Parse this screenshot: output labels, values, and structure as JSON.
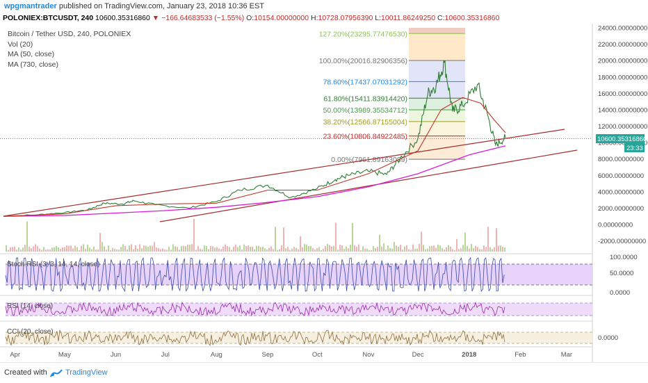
{
  "header": {
    "author": "wpgmantrader",
    "published_text": "published on TradingView.com, January 23, 2018 10:36 EST"
  },
  "quote": {
    "symbol": "POLONIEX:BTCUSDT, 240",
    "last": "10600.35316860",
    "change": "▼ −166.64683533 (−1.55%)",
    "open_label": "O:",
    "open": "10154.00000000",
    "high_label": "H:",
    "high": "10728.07956390",
    "low_label": "L:",
    "low": "10011.86249250",
    "close_label": "C:",
    "close": "10600.35316860"
  },
  "legend": {
    "title": "Bitcoin / Tether USD, 240, POLONIEX",
    "vol": "Vol (20)",
    "ma50": "MA (50, close)",
    "ma730": "MA (730, close)"
  },
  "price_badge": {
    "value": "10600.35316860",
    "timer": "23:33"
  },
  "footer": {
    "created": "Created with",
    "brand": "TradingView"
  },
  "colors": {
    "candle": "#2e7d32",
    "ma50": "#c0392b",
    "ma730": "#d81bd8",
    "channel": "#a52a2a",
    "stoch_fill": "#e1c7f7",
    "rsi_fill": "#efdcfa",
    "badge": "#26a69a"
  },
  "chart_data": [
    {
      "type": "line",
      "title": "Bitcoin / Tether USD, 240, POLONIEX",
      "x_labels": [
        "Apr",
        "May",
        "Jun",
        "Jul",
        "Aug",
        "Sep",
        "Oct",
        "Nov",
        "Dec",
        "2018",
        "Feb",
        "Mar"
      ],
      "y_ticks": [
        "24000.00000000",
        "22000.00000000",
        "20000.00000000",
        "18000.00000000",
        "16000.00000000",
        "14000.00000000",
        "12000.00000000",
        "10000.00000000",
        "8000.00000000",
        "6000.00000000",
        "4000.00000000",
        "2000.00000000",
        "0.00000000",
        "-2000.00000000"
      ],
      "ylim": [
        -3000,
        25000
      ],
      "series": [
        {
          "name": "Bitcoin / Tether USD",
          "x": [
            "2017-03-25",
            "2017-04-15",
            "2017-05-01",
            "2017-05-15",
            "2017-05-25",
            "2017-06-05",
            "2017-06-12",
            "2017-06-25",
            "2017-07-15",
            "2017-08-01",
            "2017-08-15",
            "2017-09-01",
            "2017-09-15",
            "2017-10-01",
            "2017-10-12",
            "2017-10-20",
            "2017-11-01",
            "2017-11-12",
            "2017-11-20",
            "2017-12-01",
            "2017-12-07",
            "2017-12-12",
            "2017-12-17",
            "2017-12-22",
            "2017-12-28",
            "2018-01-06",
            "2018-01-12",
            "2018-01-17",
            "2018-01-23"
          ],
          "values": [
            1000,
            1200,
            1450,
            1800,
            2600,
            2500,
            2900,
            2400,
            2000,
            2800,
            4200,
            4800,
            3300,
            4400,
            5500,
            6000,
            6500,
            6100,
            8000,
            10500,
            16000,
            17000,
            19800,
            13800,
            14500,
            17100,
            13500,
            9700,
            10600
          ]
        },
        {
          "name": "MA (50, close)",
          "x": [
            "2017-03-25",
            "2017-05-01",
            "2017-06-01",
            "2017-07-01",
            "2017-08-01",
            "2017-09-01",
            "2017-10-01",
            "2017-11-01",
            "2017-12-01",
            "2017-12-15",
            "2017-12-28",
            "2018-01-08",
            "2018-01-16",
            "2018-01-23"
          ],
          "values": [
            1000,
            1300,
            2300,
            2500,
            2600,
            4200,
            4200,
            6200,
            9000,
            14000,
            15500,
            14800,
            12800,
            11200
          ]
        },
        {
          "name": "MA (730, close)",
          "x": [
            "2017-03-25",
            "2017-05-01",
            "2017-06-01",
            "2017-07-01",
            "2017-08-01",
            "2017-09-01",
            "2017-10-01",
            "2017-11-01",
            "2017-12-01",
            "2018-01-01",
            "2018-01-23"
          ],
          "values": [
            1000,
            1100,
            1400,
            1700,
            2100,
            2700,
            3400,
            4600,
            6200,
            8500,
            9600
          ]
        }
      ],
      "fibonacci": [
        {
          "label": "127.20%(23295.77476530)",
          "value": 23295.7747653,
          "color": "#8bc34a"
        },
        {
          "label": "100.00%(20016.82906356)",
          "value": 20016.82906356,
          "color": "#757575"
        },
        {
          "label": "78.60%(17437.07031292)",
          "value": 17437.07031292,
          "color": "#1e88e5"
        },
        {
          "label": "61.80%(15411.83914420)",
          "value": 15411.8391442,
          "color": "#2e7d32"
        },
        {
          "label": "50.00%(13989.35534712)",
          "value": 13989.35534712,
          "color": "#43a047"
        },
        {
          "label": "38.20%(12566.87155004)",
          "value": 12566.87155004,
          "color": "#9e9d24"
        },
        {
          "label": "23.60%(10806.84922485)",
          "value": 10806.84922485,
          "color": "#c62828"
        },
        {
          "label": "0.00%(7961.89163089)",
          "value": 7961.89163089,
          "color": "#757575"
        }
      ]
    },
    {
      "type": "line",
      "title": "Stoch RSI (3, 3, 14, 14, close)",
      "y_ticks": [
        "100.0000",
        "50.0000",
        "0.0000"
      ],
      "ylim": [
        0,
        100
      ],
      "bands": [
        20,
        80
      ]
    },
    {
      "type": "line",
      "title": "RSI (14, close)",
      "bands": [
        30,
        70
      ]
    },
    {
      "type": "line",
      "title": "CCI (20, close)",
      "y_ticks": [
        "0.0000"
      ]
    }
  ]
}
